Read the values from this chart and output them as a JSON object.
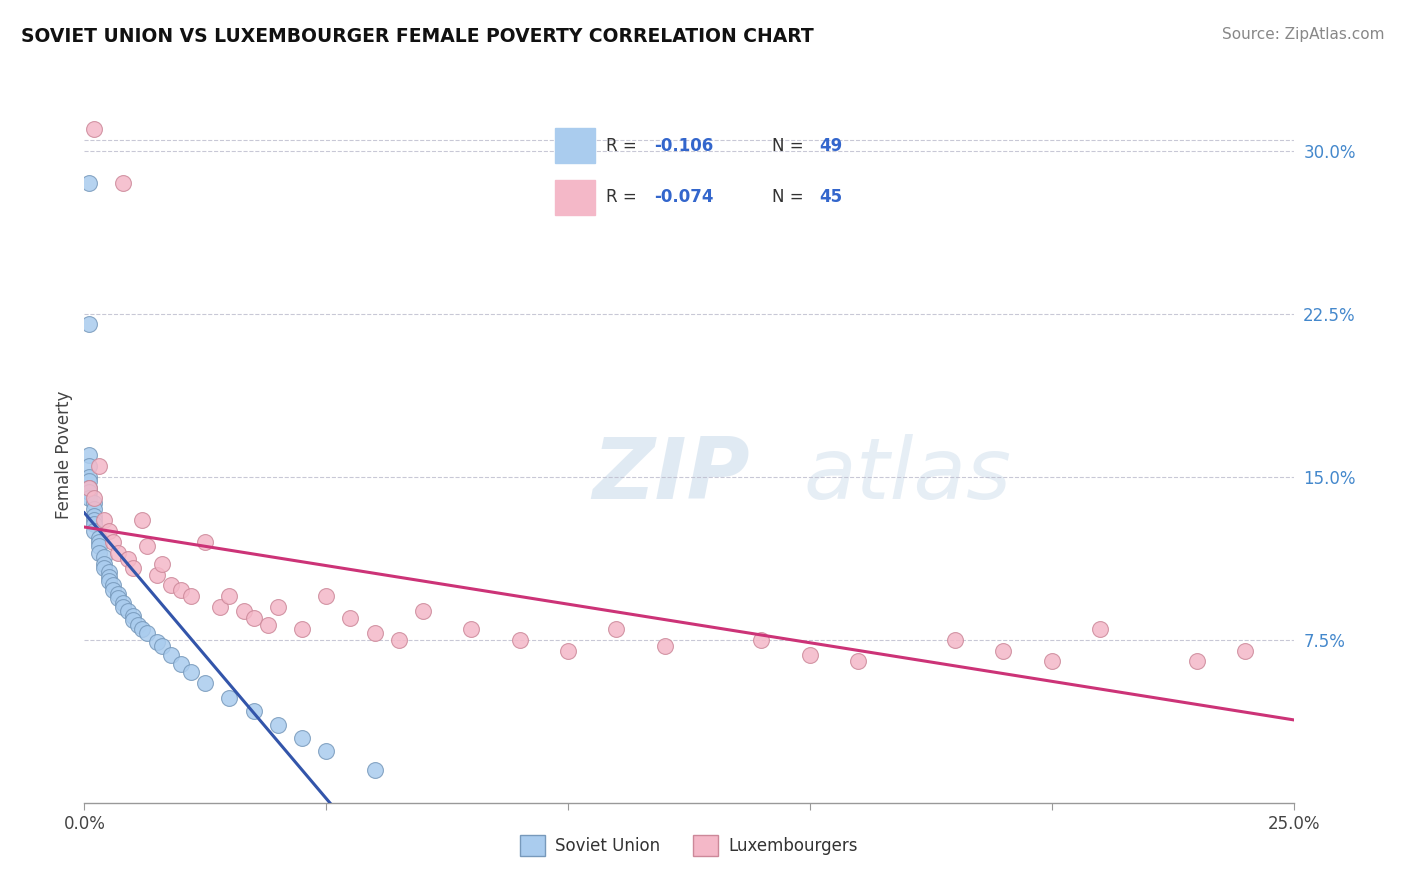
{
  "title": "SOVIET UNION VS LUXEMBOURGER FEMALE POVERTY CORRELATION CHART",
  "source": "Source: ZipAtlas.com",
  "ylabel": "Female Poverty",
  "right_yticks": [
    "30.0%",
    "22.5%",
    "15.0%",
    "7.5%"
  ],
  "right_ytick_vals": [
    0.3,
    0.225,
    0.15,
    0.075
  ],
  "xlim": [
    0.0,
    0.25
  ],
  "ylim": [
    0.0,
    0.32
  ],
  "soviet_color": "#aaccee",
  "soviet_edge": "#7799bb",
  "lux_color": "#f4b8c8",
  "lux_edge": "#cc8899",
  "trend_soviet_color": "#3355aa",
  "trend_lux_color": "#cc3377",
  "watermark_zip": "ZIP",
  "watermark_atlas": "atlas",
  "bottom_legend_soviet": "Soviet Union",
  "bottom_legend_lux": "Luxembourgers",
  "soviet_x": [
    0.001,
    0.001,
    0.001,
    0.001,
    0.001,
    0.001,
    0.001,
    0.001,
    0.001,
    0.002,
    0.002,
    0.002,
    0.002,
    0.002,
    0.002,
    0.003,
    0.003,
    0.003,
    0.003,
    0.004,
    0.004,
    0.004,
    0.005,
    0.005,
    0.005,
    0.006,
    0.006,
    0.007,
    0.007,
    0.008,
    0.008,
    0.009,
    0.01,
    0.01,
    0.011,
    0.012,
    0.013,
    0.015,
    0.016,
    0.018,
    0.02,
    0.022,
    0.025,
    0.03,
    0.035,
    0.04,
    0.045,
    0.05,
    0.06
  ],
  "soviet_y": [
    0.285,
    0.22,
    0.16,
    0.155,
    0.15,
    0.148,
    0.145,
    0.143,
    0.14,
    0.138,
    0.135,
    0.132,
    0.13,
    0.128,
    0.125,
    0.122,
    0.12,
    0.118,
    0.115,
    0.113,
    0.11,
    0.108,
    0.106,
    0.104,
    0.102,
    0.1,
    0.098,
    0.096,
    0.094,
    0.092,
    0.09,
    0.088,
    0.086,
    0.084,
    0.082,
    0.08,
    0.078,
    0.074,
    0.072,
    0.068,
    0.064,
    0.06,
    0.055,
    0.048,
    0.042,
    0.036,
    0.03,
    0.024,
    0.015
  ],
  "lux_x": [
    0.001,
    0.002,
    0.002,
    0.003,
    0.004,
    0.005,
    0.006,
    0.007,
    0.008,
    0.009,
    0.01,
    0.012,
    0.013,
    0.015,
    0.016,
    0.018,
    0.02,
    0.022,
    0.025,
    0.028,
    0.03,
    0.033,
    0.035,
    0.038,
    0.04,
    0.045,
    0.05,
    0.055,
    0.06,
    0.065,
    0.07,
    0.08,
    0.09,
    0.1,
    0.11,
    0.12,
    0.14,
    0.15,
    0.16,
    0.18,
    0.19,
    0.2,
    0.21,
    0.23,
    0.24
  ],
  "lux_y": [
    0.145,
    0.31,
    0.14,
    0.155,
    0.13,
    0.125,
    0.12,
    0.115,
    0.285,
    0.112,
    0.108,
    0.13,
    0.118,
    0.105,
    0.11,
    0.1,
    0.098,
    0.095,
    0.12,
    0.09,
    0.095,
    0.088,
    0.085,
    0.082,
    0.09,
    0.08,
    0.095,
    0.085,
    0.078,
    0.075,
    0.088,
    0.08,
    0.075,
    0.07,
    0.08,
    0.072,
    0.075,
    0.068,
    0.065,
    0.075,
    0.07,
    0.065,
    0.08,
    0.065,
    0.07
  ]
}
